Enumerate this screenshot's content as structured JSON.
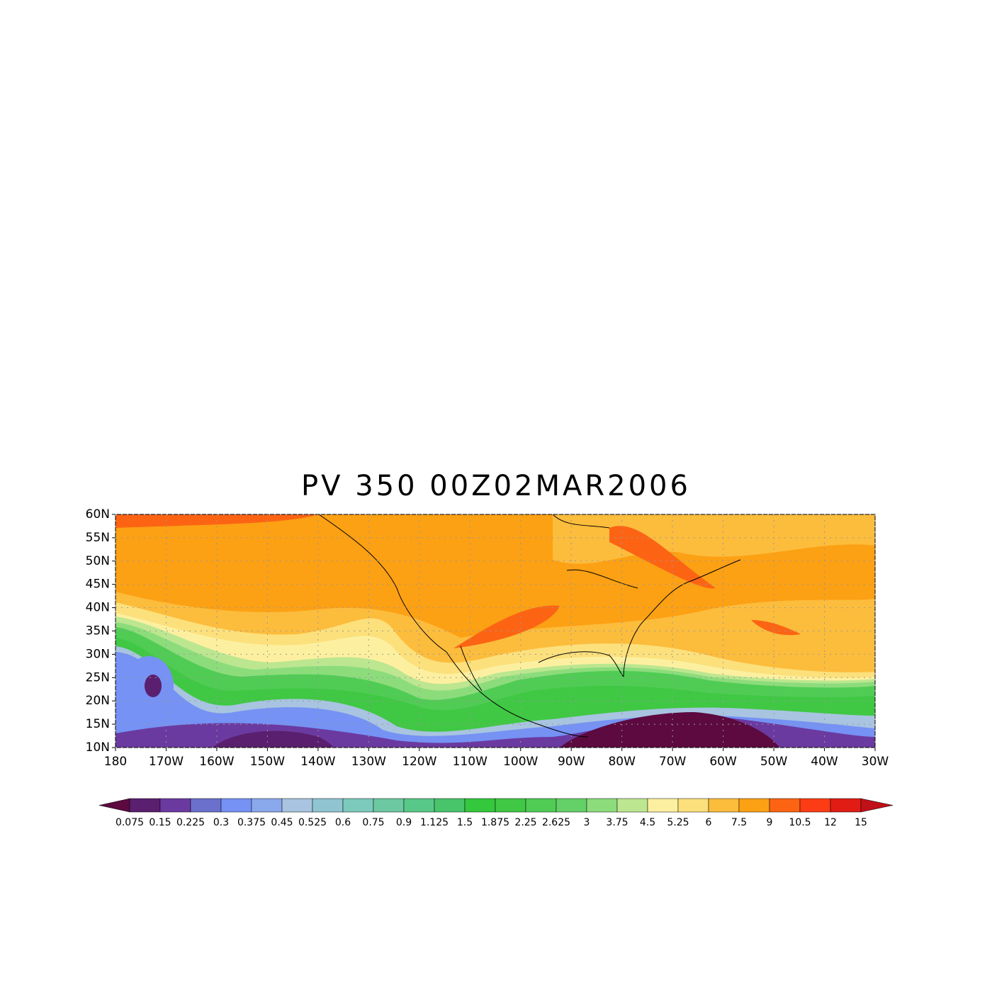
{
  "title": "PV 350 00Z02MAR2006",
  "map": {
    "xlim": [
      -180,
      -30
    ],
    "ylim": [
      10,
      60
    ],
    "xticks": [
      {
        "value": -180,
        "label": "180"
      },
      {
        "value": -170,
        "label": "170W"
      },
      {
        "value": -160,
        "label": "160W"
      },
      {
        "value": -150,
        "label": "150W"
      },
      {
        "value": -140,
        "label": "140W"
      },
      {
        "value": -130,
        "label": "130W"
      },
      {
        "value": -120,
        "label": "120W"
      },
      {
        "value": -110,
        "label": "110W"
      },
      {
        "value": -100,
        "label": "100W"
      },
      {
        "value": -90,
        "label": "90W"
      },
      {
        "value": -80,
        "label": "80W"
      },
      {
        "value": -70,
        "label": "70W"
      },
      {
        "value": -60,
        "label": "60W"
      },
      {
        "value": -50,
        "label": "50W"
      },
      {
        "value": -40,
        "label": "40W"
      },
      {
        "value": -30,
        "label": "30W"
      }
    ],
    "yticks": [
      {
        "value": 10,
        "label": "10N"
      },
      {
        "value": 15,
        "label": "15N"
      },
      {
        "value": 20,
        "label": "20N"
      },
      {
        "value": 25,
        "label": "25N"
      },
      {
        "value": 30,
        "label": "30N"
      },
      {
        "value": 35,
        "label": "35N"
      },
      {
        "value": 40,
        "label": "40N"
      },
      {
        "value": 45,
        "label": "45N"
      },
      {
        "value": 50,
        "label": "50N"
      },
      {
        "value": 55,
        "label": "55N"
      },
      {
        "value": 60,
        "label": "60N"
      }
    ],
    "grid": true
  },
  "colorbar": {
    "levels": [
      0.075,
      0.15,
      0.225,
      0.3,
      0.375,
      0.45,
      0.525,
      0.6,
      0.75,
      0.9,
      1.125,
      1.5,
      1.875,
      2.25,
      2.625,
      3,
      3.75,
      4.5,
      5.25,
      6,
      7.5,
      9,
      10.5,
      12,
      15
    ],
    "colors": [
      "#5c0a40",
      "#5a1f6e",
      "#6b3aa0",
      "#6a70cc",
      "#7592f4",
      "#8aa8ec",
      "#a8c4e0",
      "#90c4d0",
      "#7ccabc",
      "#6cc8a0",
      "#58c888",
      "#48c46a",
      "#34c83c",
      "#40c844",
      "#50cc54",
      "#64d068",
      "#8cdc7c",
      "#bce690",
      "#fcf0a0",
      "#fce07c",
      "#fcbc3c",
      "#fca014",
      "#fc6414",
      "#fc3c14",
      "#e01c14",
      "#c01018"
    ]
  }
}
